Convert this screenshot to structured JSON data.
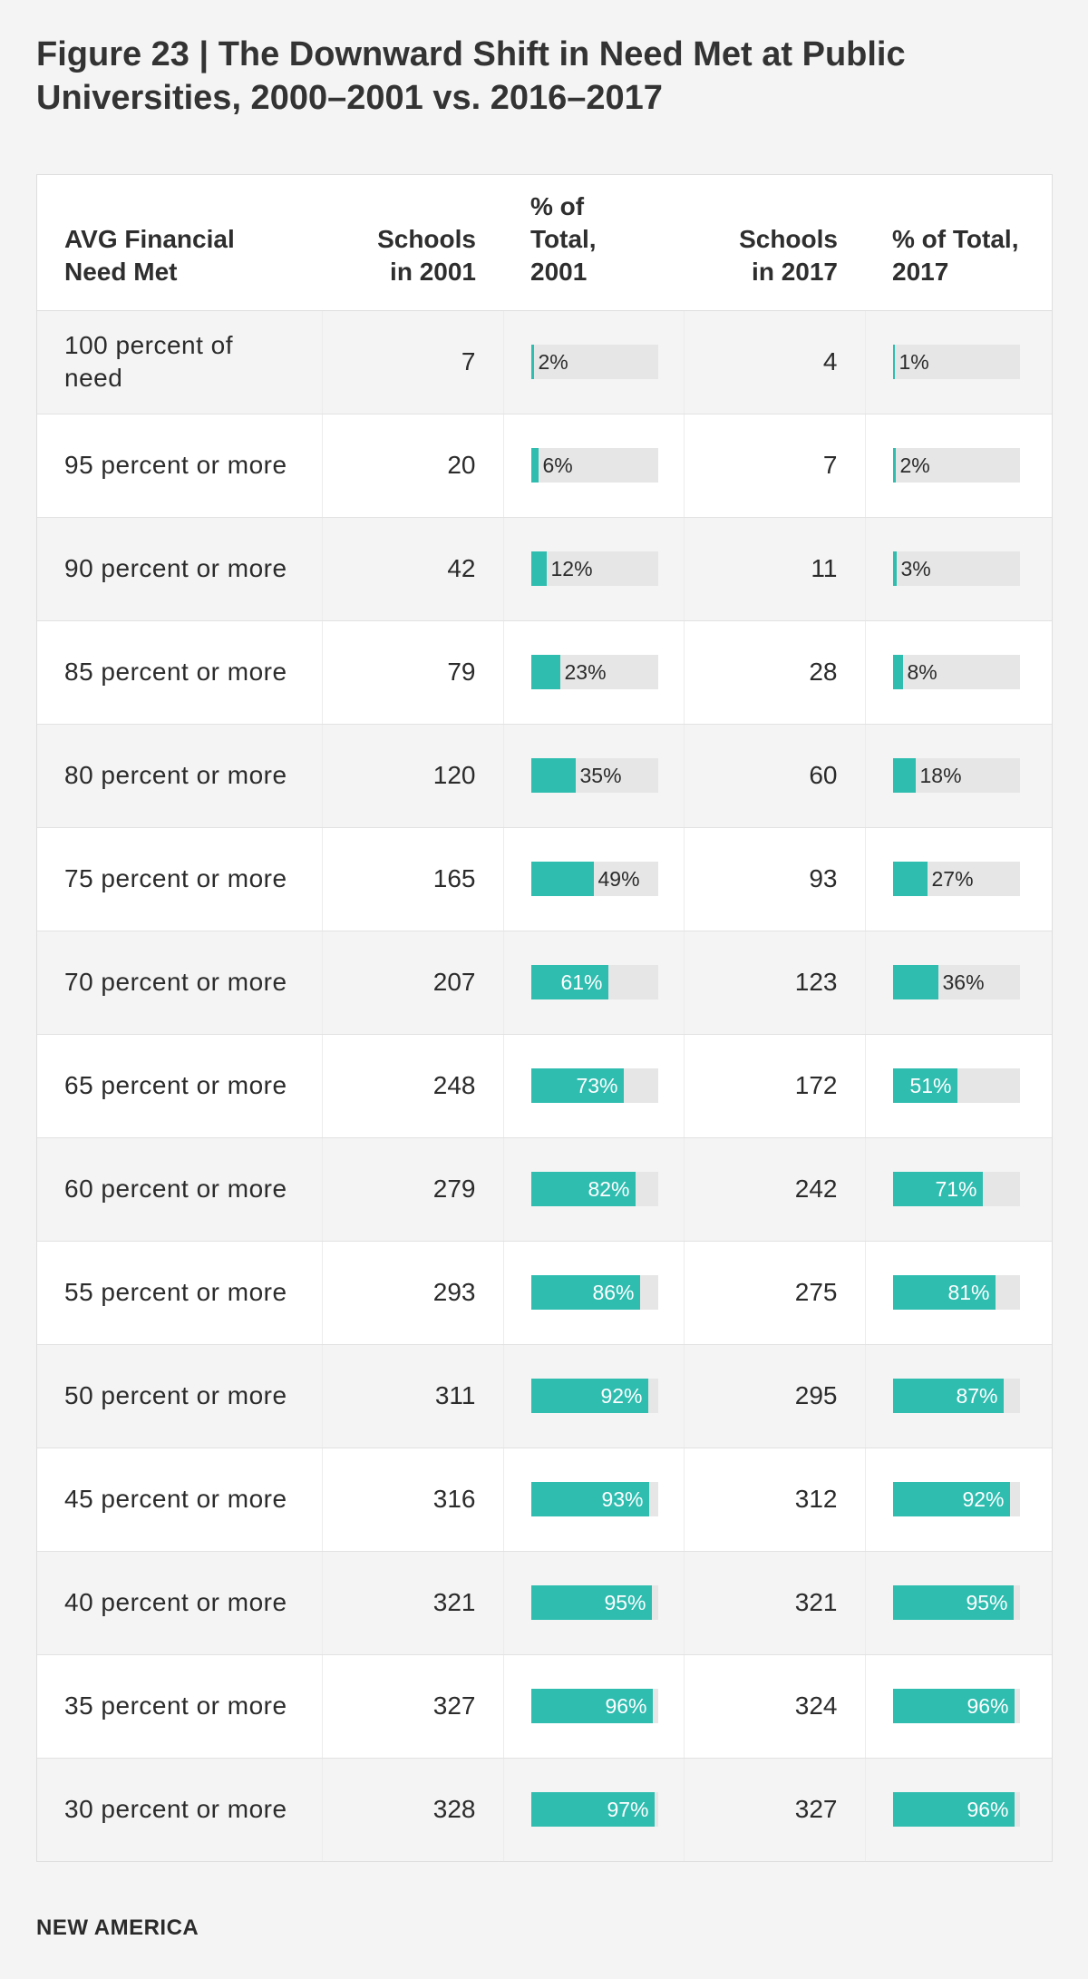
{
  "figure_title": "Figure 23 | The Downward Shift in Need Met at Public Universities, 2000–2001 vs. 2016–2017",
  "footer": "NEW AMERICA",
  "colors": {
    "bar": "#2fbdb0",
    "track": "#e6e6e6"
  },
  "chart_data": {
    "type": "table",
    "title": "Figure 23 | The Downward Shift in Need Met at Public Universities, 2000–2001 vs. 2016–2017",
    "columns": [
      "AVG Financial Need Met",
      "Schools in 2001",
      "% of Total, 2001",
      "Schools in 2017",
      "% of Total, 2017"
    ],
    "rows": [
      {
        "label": "100 percent of need",
        "schools_2001": 7,
        "pct_2001": 2,
        "schools_2017": 4,
        "pct_2017": 1
      },
      {
        "label": "95 percent or more",
        "schools_2001": 20,
        "pct_2001": 6,
        "schools_2017": 7,
        "pct_2017": 2
      },
      {
        "label": "90 percent or more",
        "schools_2001": 42,
        "pct_2001": 12,
        "schools_2017": 11,
        "pct_2017": 3
      },
      {
        "label": "85 percent or more",
        "schools_2001": 79,
        "pct_2001": 23,
        "schools_2017": 28,
        "pct_2017": 8
      },
      {
        "label": "80 percent or more",
        "schools_2001": 120,
        "pct_2001": 35,
        "schools_2017": 60,
        "pct_2017": 18
      },
      {
        "label": "75 percent or more",
        "schools_2001": 165,
        "pct_2001": 49,
        "schools_2017": 93,
        "pct_2017": 27
      },
      {
        "label": "70 percent or more",
        "schools_2001": 207,
        "pct_2001": 61,
        "schools_2017": 123,
        "pct_2017": 36
      },
      {
        "label": "65 percent or more",
        "schools_2001": 248,
        "pct_2001": 73,
        "schools_2017": 172,
        "pct_2017": 51
      },
      {
        "label": "60 percent or more",
        "schools_2001": 279,
        "pct_2001": 82,
        "schools_2017": 242,
        "pct_2017": 71
      },
      {
        "label": "55 percent or more",
        "schools_2001": 293,
        "pct_2001": 86,
        "schools_2017": 275,
        "pct_2017": 81
      },
      {
        "label": "50 percent or more",
        "schools_2001": 311,
        "pct_2001": 92,
        "schools_2017": 295,
        "pct_2017": 87
      },
      {
        "label": "45 percent or more",
        "schools_2001": 316,
        "pct_2001": 93,
        "schools_2017": 312,
        "pct_2017": 92
      },
      {
        "label": "40 percent or more",
        "schools_2001": 321,
        "pct_2001": 95,
        "schools_2017": 321,
        "pct_2017": 95
      },
      {
        "label": "35 percent or more",
        "schools_2001": 327,
        "pct_2001": 96,
        "schools_2017": 324,
        "pct_2017": 96
      },
      {
        "label": "30 percent or more",
        "schools_2001": 328,
        "pct_2001": 97,
        "schools_2017": 327,
        "pct_2017": 96
      }
    ]
  }
}
